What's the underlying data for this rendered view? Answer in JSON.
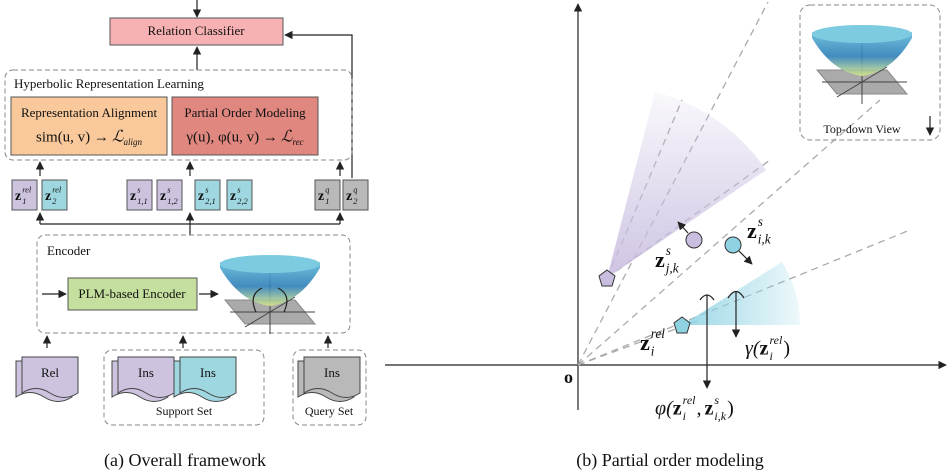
{
  "left": {
    "classifier": "Relation Classifier",
    "hrl": {
      "title": "Hyperbolic Representation Learning",
      "alignment": {
        "title": "Representation Alignment",
        "formula": {
          "lhs": "sim(u, v) →",
          "loss": "ℒ",
          "sub": "align"
        }
      },
      "order": {
        "title": "Partial Order Modeling",
        "formula": {
          "lhs": "γ(u), φ(u, v) →",
          "loss": "ℒ",
          "sub": "rec"
        }
      }
    },
    "embeddings": {
      "relation": [
        {
          "base": "z",
          "sup": "rel",
          "sub": "1"
        },
        {
          "base": "z",
          "sup": "rel",
          "sub": "2"
        }
      ],
      "support": [
        {
          "base": "z",
          "sup": "s",
          "sub": "1,1"
        },
        {
          "base": "z",
          "sup": "s",
          "sub": "1,2"
        },
        {
          "base": "z",
          "sup": "s",
          "sub": "2,1"
        },
        {
          "base": "z",
          "sup": "s",
          "sub": "2,2"
        }
      ],
      "query": [
        {
          "base": "z",
          "sup": "q",
          "sub": "1"
        },
        {
          "base": "z",
          "sup": "q",
          "sub": "2"
        }
      ]
    },
    "encoder": {
      "title": "Encoder",
      "plm": "PLM-based Encoder"
    },
    "inputs": {
      "rel": "Rel",
      "support": {
        "docs": [
          "Ins",
          "Ins"
        ],
        "label": "Support Set"
      },
      "query": {
        "docs": [
          "Ins"
        ],
        "label": "Query Set"
      }
    }
  },
  "right": {
    "origin": "o",
    "inset": "Top-down View",
    "zjk": {
      "base": "z",
      "sup": "s",
      "sub": "j,k"
    },
    "zik": {
      "base": "z",
      "sup": "s",
      "sub": "i,k"
    },
    "zi": {
      "base": "z",
      "sup": "rel",
      "sub": "i"
    },
    "gamma": {
      "open": "γ(",
      "arg": {
        "base": "z",
        "sup": "rel",
        "sub": "i"
      },
      "close": ")"
    },
    "phi": {
      "open": "φ(",
      "arg1": {
        "base": "z",
        "sup": "rel",
        "sub": "i"
      },
      "sep": ",",
      "arg2": {
        "base": "z",
        "sup": "s",
        "sub": "i,k"
      },
      "close": ")"
    }
  },
  "captions": [
    "(a) Overall framework",
    "(b) Partial order modeling"
  ]
}
